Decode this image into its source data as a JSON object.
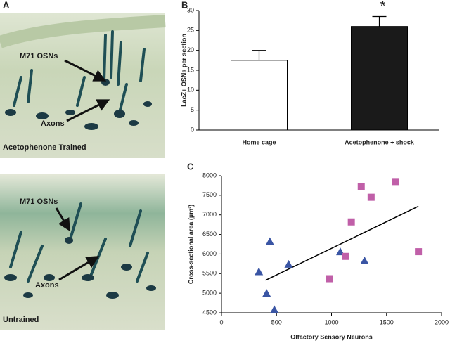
{
  "panel_a": {
    "label": "A",
    "images": [
      {
        "caption": "Acetophenone Trained",
        "annotations": [
          "M71 OSNs",
          "Axons"
        ]
      },
      {
        "caption": "Untrained",
        "annotations": [
          "M71 OSNs",
          "Axons"
        ]
      }
    ]
  },
  "chart_data": [
    {
      "type": "bar",
      "panel_label": "B",
      "y_label": "LacZ+ OSNs per section",
      "categories": [
        "Home cage",
        "Acetophenone + shock"
      ],
      "values": [
        17.5,
        26
      ],
      "errors": [
        2.5,
        2.5
      ],
      "colors": [
        "#ffffff",
        "#1a1a1a"
      ],
      "annotation": "*",
      "ylim": [
        0,
        30
      ],
      "yticks": [
        0,
        5,
        10,
        15,
        20,
        25,
        30
      ]
    },
    {
      "type": "scatter",
      "panel_label": "C",
      "x_label": "Olfactory Sensory Neurons",
      "y_label": "Cross-sectional area (µm²)",
      "series": [
        {
          "color": "#3a55a4",
          "marker": "triangle",
          "x": [
            340,
            410,
            440,
            480,
            610,
            1080,
            1300
          ],
          "values": [
            5550,
            5000,
            6320,
            4580,
            5740,
            6060,
            5830
          ]
        },
        {
          "color": "#c05fa8",
          "marker": "square",
          "x": [
            980,
            1130,
            1180,
            1270,
            1360,
            1580,
            1790
          ],
          "values": [
            5370,
            5940,
            6820,
            7730,
            7450,
            7850,
            6060
          ]
        }
      ],
      "trendline": {
        "x": [
          400,
          1790
        ],
        "values": [
          5330,
          7220
        ]
      },
      "xlim": [
        0,
        2000
      ],
      "xticks": [
        0,
        500,
        1000,
        1500,
        2000
      ],
      "ylim": [
        4500,
        8000
      ],
      "yticks": [
        4500,
        5000,
        5500,
        6000,
        6500,
        7000,
        7500,
        8000
      ]
    }
  ]
}
